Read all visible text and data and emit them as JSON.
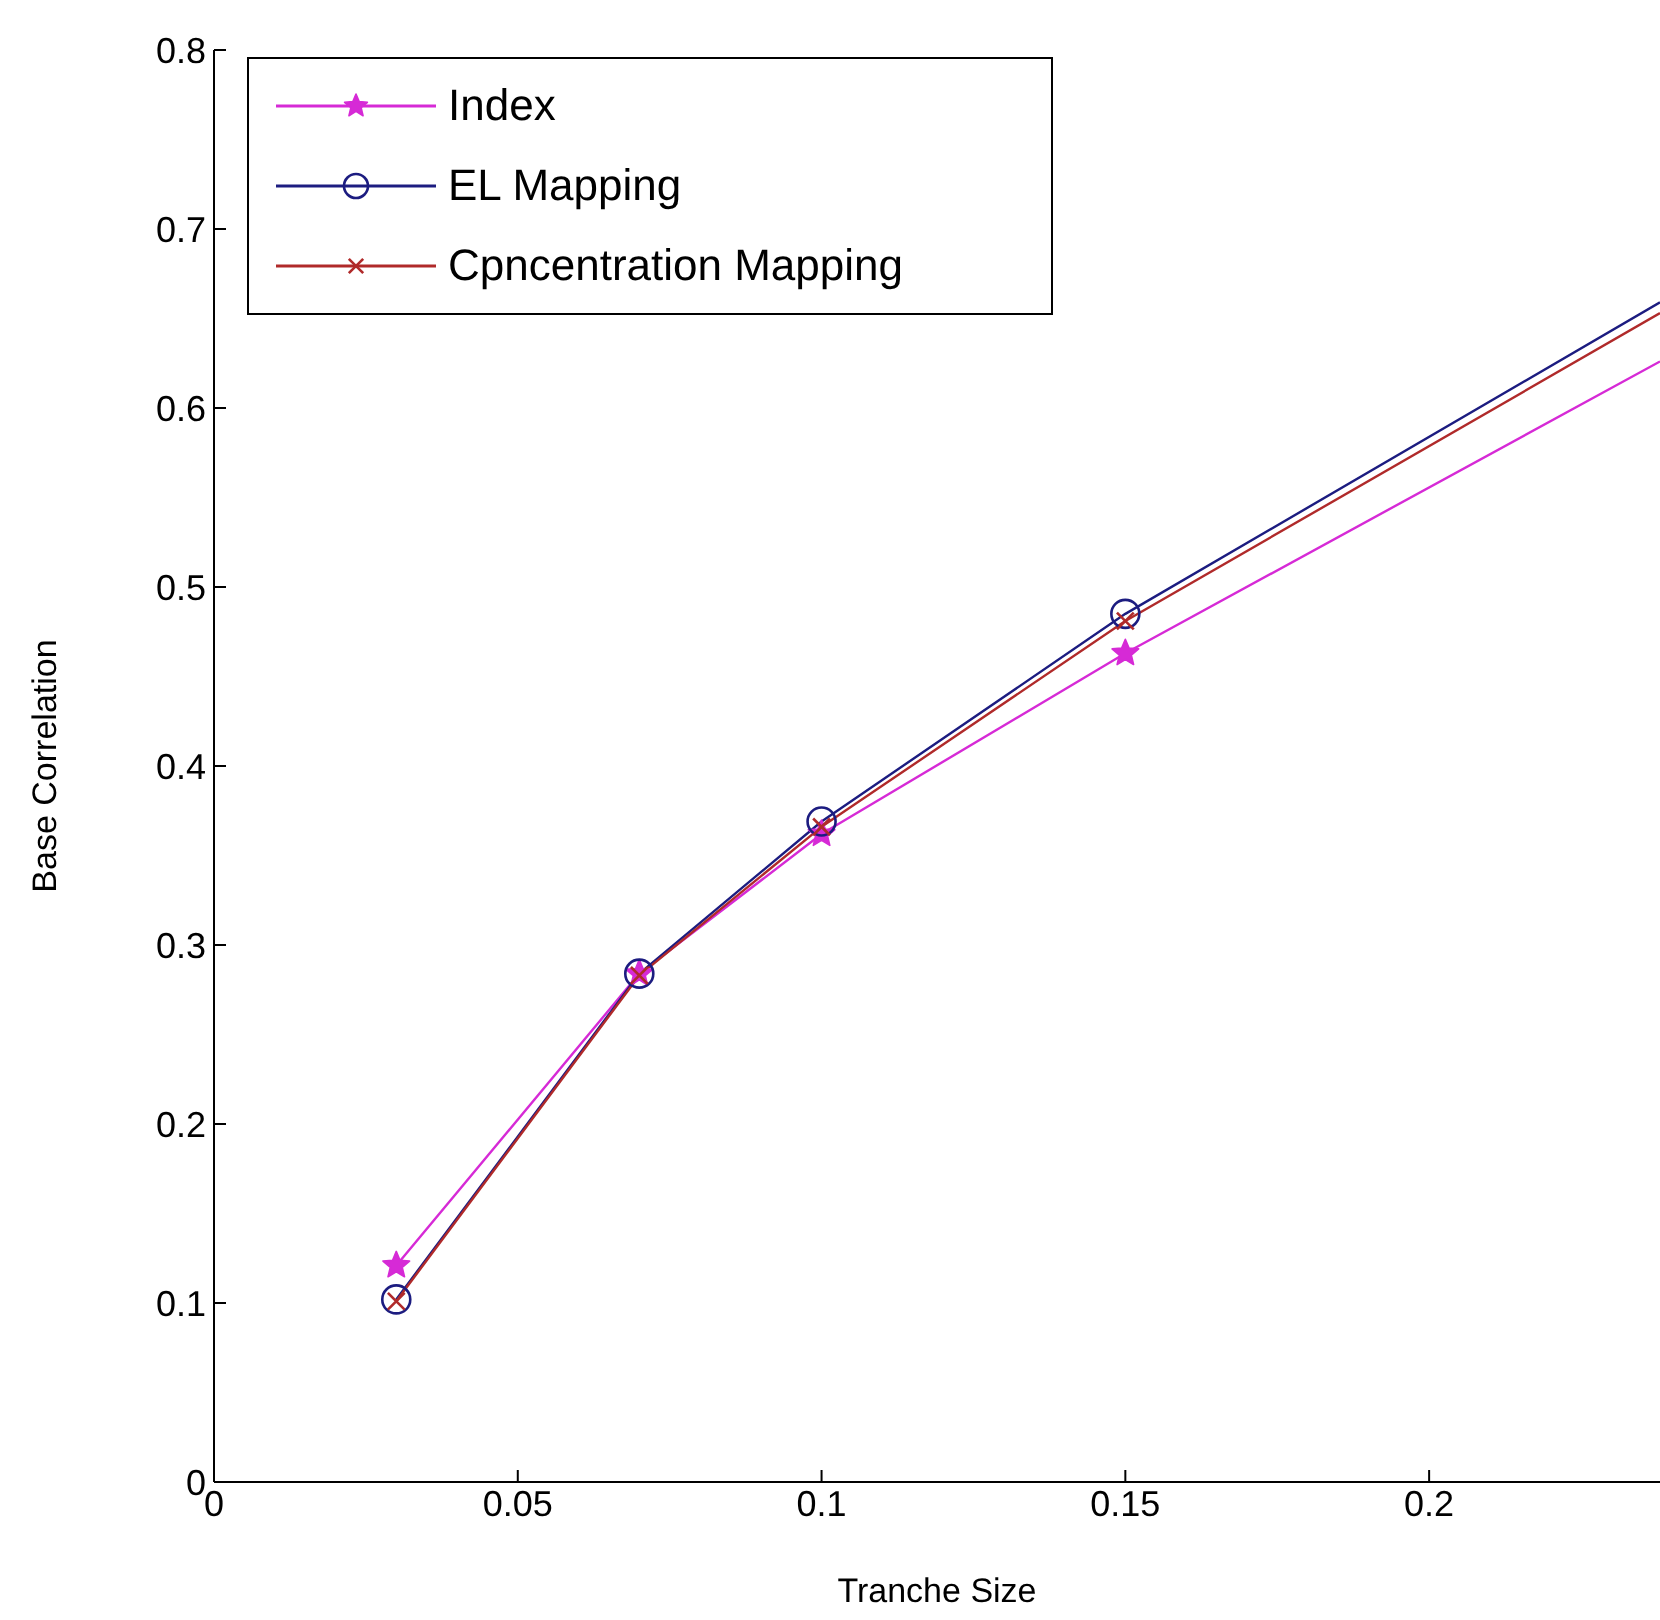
{
  "chart_data": {
    "type": "line",
    "xlabel": "Tranche Size",
    "ylabel": "Base Correlation",
    "x": [
      0.03,
      0.07,
      0.1,
      0.15,
      0.238
    ],
    "series": [
      {
        "name": "Index",
        "color": "#d62ad6",
        "marker": "star",
        "values": [
          0.121,
          0.284,
          0.362,
          0.463,
          0.626
        ]
      },
      {
        "name": "EL Mapping",
        "color": "#1c1c80",
        "marker": "circle",
        "values": [
          0.102,
          0.284,
          0.369,
          0.485,
          0.659
        ]
      },
      {
        "name": "Cpncentration Mapping",
        "color": "#b02a2a",
        "marker": "cross",
        "values": [
          0.101,
          0.283,
          0.366,
          0.481,
          0.653
        ]
      }
    ],
    "xlim": [
      0,
      0.238
    ],
    "xticks": [
      0,
      0.05,
      0.1,
      0.15,
      0.2
    ],
    "ylim": [
      0,
      0.8
    ],
    "yticks": [
      0,
      0.1,
      0.2,
      0.3,
      0.4,
      0.5,
      0.6,
      0.7,
      0.8
    ],
    "grid": false,
    "legend": "top left",
    "line_style": "solid"
  }
}
